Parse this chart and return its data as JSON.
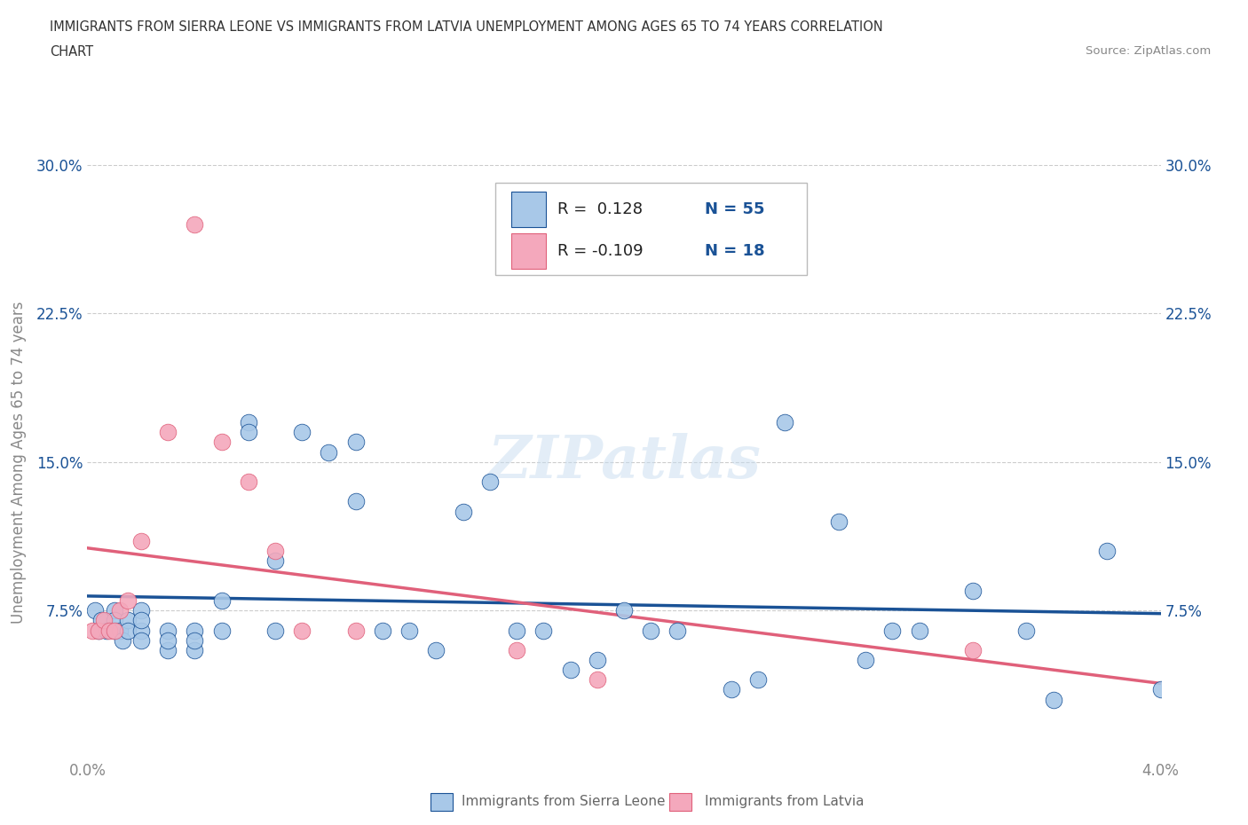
{
  "title_line1": "IMMIGRANTS FROM SIERRA LEONE VS IMMIGRANTS FROM LATVIA UNEMPLOYMENT AMONG AGES 65 TO 74 YEARS CORRELATION",
  "title_line2": "CHART",
  "source_text": "Source: ZipAtlas.com",
  "ylabel": "Unemployment Among Ages 65 to 74 years",
  "legend_r1": "R =  0.128",
  "legend_n1": "N = 55",
  "legend_r2": "R = -0.109",
  "legend_n2": "N = 18",
  "color_sierra": "#a8c8e8",
  "color_latvia": "#f4a8bc",
  "color_line_sierra": "#1a5296",
  "color_line_latvia": "#e0607a",
  "yticks": [
    0.0,
    0.075,
    0.15,
    0.225,
    0.3
  ],
  "ytick_labels_left": [
    "",
    "7.5%",
    "15.0%",
    "22.5%",
    "30.0%"
  ],
  "ytick_labels_right": [
    "",
    "7.5%",
    "15.0%",
    "22.5%",
    "30.0%"
  ],
  "xticks": [
    0.0,
    0.01,
    0.02,
    0.03,
    0.04
  ],
  "xtick_labels": [
    "0.0%",
    "",
    "",
    "",
    "4.0%"
  ],
  "xmin": 0.0,
  "xmax": 0.04,
  "ymin": 0.0,
  "ymax": 0.3,
  "sierra_leone_x": [
    0.0003,
    0.0004,
    0.0005,
    0.0007,
    0.001,
    0.001,
    0.001,
    0.0012,
    0.0013,
    0.0015,
    0.0015,
    0.002,
    0.002,
    0.002,
    0.002,
    0.003,
    0.003,
    0.003,
    0.004,
    0.004,
    0.004,
    0.005,
    0.005,
    0.006,
    0.006,
    0.007,
    0.007,
    0.008,
    0.009,
    0.01,
    0.01,
    0.011,
    0.012,
    0.013,
    0.014,
    0.015,
    0.016,
    0.017,
    0.018,
    0.019,
    0.02,
    0.021,
    0.022,
    0.024,
    0.025,
    0.026,
    0.028,
    0.029,
    0.03,
    0.031,
    0.033,
    0.035,
    0.036,
    0.038,
    0.04
  ],
  "sierra_leone_y": [
    0.075,
    0.065,
    0.07,
    0.065,
    0.075,
    0.065,
    0.07,
    0.065,
    0.06,
    0.07,
    0.065,
    0.075,
    0.065,
    0.07,
    0.06,
    0.065,
    0.055,
    0.06,
    0.065,
    0.055,
    0.06,
    0.08,
    0.065,
    0.17,
    0.165,
    0.1,
    0.065,
    0.165,
    0.155,
    0.16,
    0.13,
    0.065,
    0.065,
    0.055,
    0.125,
    0.14,
    0.065,
    0.065,
    0.045,
    0.05,
    0.075,
    0.065,
    0.065,
    0.035,
    0.04,
    0.17,
    0.12,
    0.05,
    0.065,
    0.065,
    0.085,
    0.065,
    0.03,
    0.105,
    0.035
  ],
  "latvia_x": [
    0.0002,
    0.0004,
    0.0006,
    0.0008,
    0.001,
    0.0012,
    0.0015,
    0.002,
    0.003,
    0.004,
    0.005,
    0.006,
    0.007,
    0.008,
    0.01,
    0.016,
    0.019,
    0.033
  ],
  "latvia_y": [
    0.065,
    0.065,
    0.07,
    0.065,
    0.065,
    0.075,
    0.08,
    0.11,
    0.165,
    0.27,
    0.16,
    0.14,
    0.105,
    0.065,
    0.065,
    0.055,
    0.04,
    0.055
  ],
  "watermark": "ZIPatlas",
  "grid_color": "#cccccc",
  "bottom_legend_label1": "Immigrants from Sierra Leone",
  "bottom_legend_label2": "Immigrants from Latvia"
}
